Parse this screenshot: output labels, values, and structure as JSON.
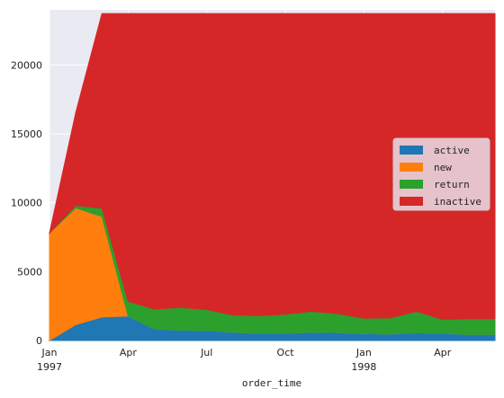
{
  "chart_data": {
    "type": "area",
    "stacked": true,
    "xlabel": "order_time",
    "ylabel": "",
    "ylim": [
      0,
      24000
    ],
    "yticks": [
      0,
      5000,
      10000,
      15000,
      20000
    ],
    "ytick_labels": [
      "0",
      "5000",
      "10000",
      "15000",
      "20000"
    ],
    "grid": true,
    "legend_position": "center-right",
    "x": [
      "1997-01",
      "1997-02",
      "1997-03",
      "1997-04",
      "1997-05",
      "1997-06",
      "1997-07",
      "1997-08",
      "1997-09",
      "1997-10",
      "1997-11",
      "1997-12",
      "1998-01",
      "1998-02",
      "1998-03",
      "1998-04",
      "1998-05",
      "1998-06"
    ],
    "xticks": [
      {
        "month": 0,
        "label": "Jan",
        "sublabel": "1997"
      },
      {
        "month": 3,
        "label": "Apr",
        "sublabel": ""
      },
      {
        "month": 6,
        "label": "Jul",
        "sublabel": ""
      },
      {
        "month": 9,
        "label": "Oct",
        "sublabel": ""
      },
      {
        "month": 12,
        "label": "Jan",
        "sublabel": "1998"
      },
      {
        "month": 15,
        "label": "Apr",
        "sublabel": ""
      }
    ],
    "series": [
      {
        "name": "active",
        "color": "#1f77b4",
        "values": [
          0,
          1150,
          1700,
          1780,
          850,
          750,
          730,
          600,
          520,
          530,
          600,
          580,
          500,
          470,
          560,
          520,
          440,
          450
        ]
      },
      {
        "name": "new",
        "color": "#ff7f0e",
        "values": [
          7800,
          8480,
          7300,
          0,
          0,
          0,
          0,
          0,
          0,
          0,
          0,
          0,
          0,
          0,
          0,
          0,
          0,
          0
        ]
      },
      {
        "name": "return",
        "color": "#2ca02c",
        "values": [
          0,
          170,
          600,
          1070,
          1430,
          1650,
          1520,
          1250,
          1280,
          1380,
          1520,
          1370,
          1110,
          1170,
          1560,
          1010,
          1140,
          1140
        ]
      },
      {
        "name": "inactive",
        "color": "#d62728",
        "values": [
          0,
          6730,
          14130,
          20880,
          21450,
          21330,
          21480,
          21880,
          21930,
          21820,
          21610,
          21780,
          22120,
          22090,
          21610,
          22200,
          22150,
          22140
        ]
      }
    ]
  }
}
